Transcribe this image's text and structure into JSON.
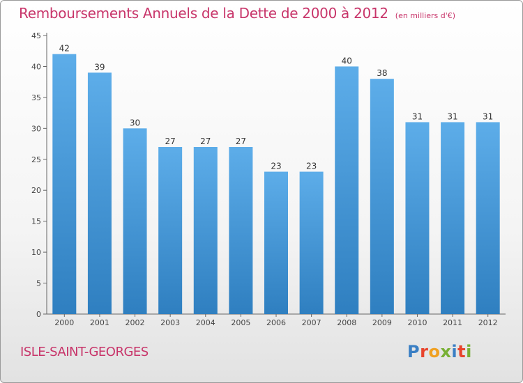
{
  "header": {
    "title": "Remboursements Annuels de la Dette de 2000 à 2012",
    "unit": "(en milliers d'€)"
  },
  "footer": {
    "commune": "ISLE-SAINT-GEORGES",
    "logo_letters": [
      "P",
      "r",
      "o",
      "x",
      "i",
      "t",
      "i"
    ],
    "logo_colors": [
      "#3a7fc4",
      "#e8442d",
      "#f0a020",
      "#78b035",
      "#3a7fc4",
      "#e8442d",
      "#78b035"
    ]
  },
  "colors": {
    "bar_top": "#5dade9",
    "bar_bottom": "#2f7fc0",
    "title": "#c8356a"
  },
  "chart_data": {
    "type": "bar",
    "title": "Remboursements Annuels de la Dette de 2000 à 2012",
    "categories": [
      "2000",
      "2001",
      "2002",
      "2003",
      "2004",
      "2005",
      "2006",
      "2007",
      "2008",
      "2009",
      "2010",
      "2011",
      "2012"
    ],
    "values": [
      42,
      39,
      30,
      27,
      27,
      27,
      23,
      23,
      40,
      38,
      31,
      31,
      31
    ],
    "ylim": [
      0,
      45
    ],
    "yticks": [
      0,
      5,
      10,
      15,
      20,
      25,
      30,
      35,
      40,
      45
    ],
    "grid": false,
    "legend": "none"
  }
}
